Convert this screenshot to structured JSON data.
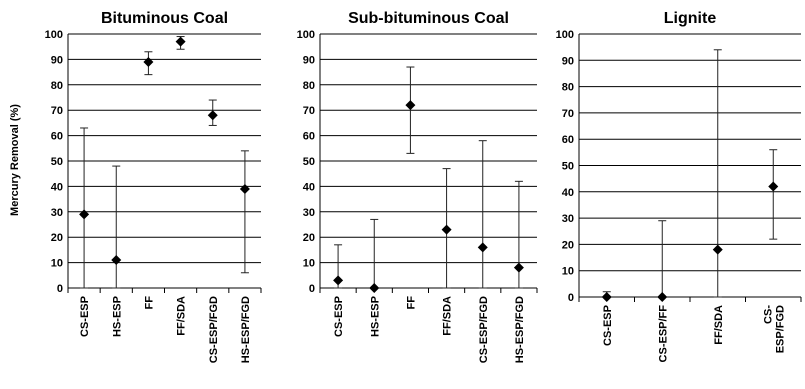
{
  "ylabel": "Mercury Removal (%)",
  "chart_data": [
    {
      "type": "scatter",
      "title": "Bituminous Coal",
      "ylabel": "Mercury Removal (%)",
      "ylim": [
        0,
        100
      ],
      "yticks": [
        0,
        10,
        20,
        30,
        40,
        50,
        60,
        70,
        80,
        90,
        100
      ],
      "grid": true,
      "categories": [
        "CS-ESP",
        "HS-ESP",
        "FF",
        "FF/SDA",
        "CS-ESP/FGD",
        "HS-ESP/FGD"
      ],
      "values": [
        29,
        11,
        89,
        97,
        68,
        39
      ],
      "error_low": [
        0,
        0,
        84,
        94,
        64,
        6
      ],
      "error_high": [
        63,
        48,
        93,
        99,
        74,
        54
      ]
    },
    {
      "type": "scatter",
      "title": "Sub-bituminous Coal",
      "ylim": [
        0,
        100
      ],
      "yticks": [
        0,
        10,
        20,
        30,
        40,
        50,
        60,
        70,
        80,
        90,
        100
      ],
      "grid": true,
      "categories": [
        "CS-ESP",
        "HS-ESP",
        "FF",
        "FF/SDA",
        "CS-ESP/FGD",
        "HS-ESP/FGD"
      ],
      "values": [
        3,
        0,
        72,
        23,
        16,
        8
      ],
      "error_low": [
        0,
        0,
        53,
        0,
        0,
        0
      ],
      "error_high": [
        17,
        27,
        87,
        47,
        58,
        42
      ]
    },
    {
      "type": "scatter",
      "title": "Lignite",
      "ylim": [
        0,
        100
      ],
      "yticks": [
        0,
        10,
        20,
        30,
        40,
        50,
        60,
        70,
        80,
        90,
        100
      ],
      "grid": true,
      "categories": [
        "CS-ESP",
        "CS-ESP/FF",
        "FF/SDA",
        "CS-ESP/FGD"
      ],
      "category_lines": [
        [
          "CS-ESP"
        ],
        [
          "CS-ESP/FF"
        ],
        [
          "FF/SDA"
        ],
        [
          "CS-",
          "ESP/FGD"
        ]
      ],
      "values": [
        0,
        0,
        18,
        42
      ],
      "error_low": [
        0,
        0,
        0,
        22
      ],
      "error_high": [
        2,
        29,
        94,
        56
      ]
    }
  ]
}
